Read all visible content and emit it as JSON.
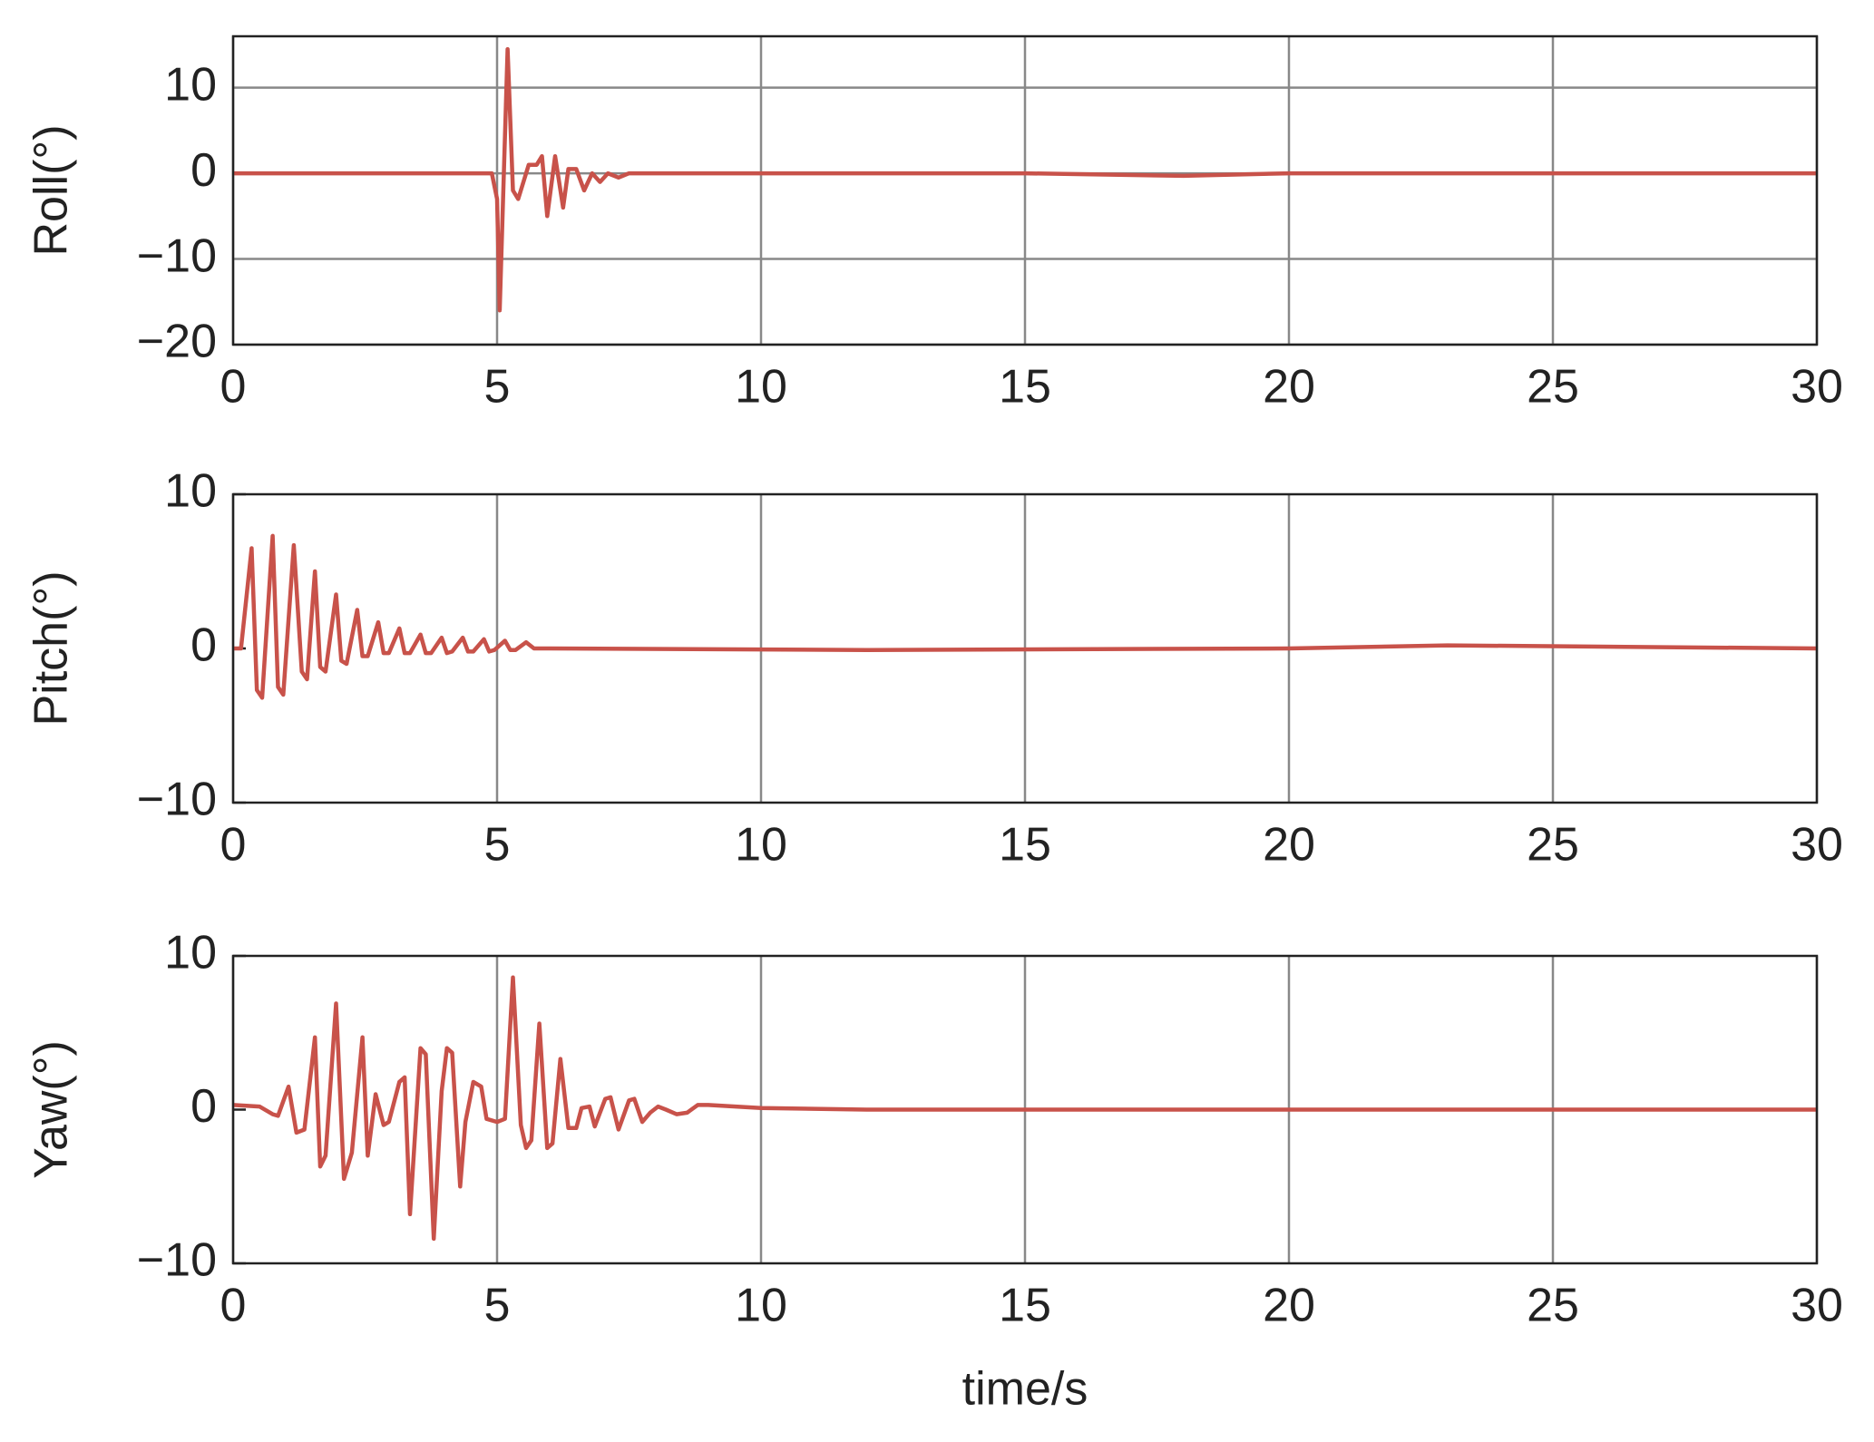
{
  "chart_data": [
    {
      "type": "line",
      "ylabel": "Roll(°)",
      "color": "#c8524a",
      "grid": "both",
      "xlim": [
        0,
        30
      ],
      "xticks": [
        0,
        5,
        10,
        15,
        20,
        25,
        30
      ],
      "ylim": [
        -20,
        16
      ],
      "yticks": [
        {
          "value": -20,
          "label": "−20"
        },
        {
          "value": -10,
          "label": "−10"
        },
        0,
        10
      ],
      "x": [
        0,
        4.9,
        5.0,
        5.05,
        5.2,
        5.3,
        5.4,
        5.6,
        5.75,
        5.85,
        5.95,
        6.1,
        6.25,
        6.35,
        6.5,
        6.65,
        6.8,
        6.95,
        7.1,
        7.3,
        7.5,
        7.8,
        8,
        10,
        15,
        18,
        20,
        25,
        30
      ],
      "values": [
        0,
        0,
        -3,
        -16,
        14.5,
        -2,
        -3,
        1,
        1,
        2,
        -5,
        2,
        -4,
        0.5,
        0.5,
        -2,
        0,
        -1,
        0,
        -0.5,
        0,
        0,
        0,
        0,
        0,
        -0.3,
        0,
        0,
        0
      ]
    },
    {
      "type": "line",
      "ylabel": "Pitch(°)",
      "color": "#c8524a",
      "grid": "x",
      "xlim": [
        0,
        30
      ],
      "xticks": [
        0,
        5,
        10,
        15,
        20,
        25,
        30
      ],
      "ylim": [
        -10,
        10
      ],
      "yticks": [
        {
          "value": -10,
          "label": "−10"
        },
        0,
        10
      ],
      "x": [
        0,
        0.15,
        0.35,
        0.45,
        0.55,
        0.75,
        0.85,
        0.95,
        1.15,
        1.3,
        1.4,
        1.55,
        1.65,
        1.75,
        1.95,
        2.05,
        2.15,
        2.35,
        2.45,
        2.55,
        2.75,
        2.85,
        2.95,
        3.15,
        3.25,
        3.35,
        3.55,
        3.65,
        3.75,
        3.95,
        4.05,
        4.15,
        4.35,
        4.45,
        4.55,
        4.75,
        4.85,
        4.95,
        5.15,
        5.25,
        5.35,
        5.55,
        5.7,
        6,
        12,
        20,
        23,
        30
      ],
      "values": [
        0,
        0,
        6.5,
        -2.7,
        -3.2,
        7.3,
        -2.5,
        -3,
        6.7,
        -1.5,
        -2,
        5,
        -1.2,
        -1.5,
        3.5,
        -0.8,
        -1,
        2.5,
        -0.5,
        -0.5,
        1.7,
        -0.3,
        -0.3,
        1.3,
        -0.3,
        -0.3,
        0.9,
        -0.3,
        -0.3,
        0.7,
        -0.3,
        -0.2,
        0.7,
        -0.2,
        -0.2,
        0.6,
        -0.2,
        -0.1,
        0.5,
        -0.1,
        -0.1,
        0.4,
        0,
        0,
        -0.1,
        0,
        0.2,
        0
      ]
    },
    {
      "type": "line",
      "ylabel": "Yaw(°)",
      "xlabel": "time/s",
      "color": "#c8524a",
      "grid": "x",
      "xlim": [
        0,
        30
      ],
      "xticks": [
        0,
        5,
        10,
        15,
        20,
        25,
        30
      ],
      "ylim": [
        -10,
        10
      ],
      "yticks": [
        {
          "value": -10,
          "label": "−10"
        },
        0,
        10
      ],
      "x": [
        0,
        0.5,
        0.75,
        0.85,
        1.05,
        1.2,
        1.35,
        1.55,
        1.65,
        1.75,
        1.95,
        2.1,
        2.25,
        2.45,
        2.55,
        2.7,
        2.85,
        2.95,
        3.15,
        3.25,
        3.35,
        3.55,
        3.65,
        3.8,
        3.95,
        4.05,
        4.15,
        4.3,
        4.4,
        4.55,
        4.7,
        4.8,
        5,
        5.15,
        5.3,
        5.45,
        5.55,
        5.65,
        5.8,
        5.95,
        6.05,
        6.2,
        6.35,
        6.5,
        6.6,
        6.75,
        6.85,
        7.05,
        7.15,
        7.3,
        7.5,
        7.6,
        7.75,
        7.9,
        8.05,
        8.2,
        8.4,
        8.6,
        8.8,
        9,
        10,
        12,
        17,
        20,
        30
      ],
      "values": [
        0.3,
        0.2,
        -0.3,
        -0.4,
        1.5,
        -1.5,
        -1.3,
        4.7,
        -3.7,
        -3,
        6.9,
        -4.5,
        -2.8,
        4.7,
        -3,
        1,
        -1,
        -0.8,
        1.8,
        2.1,
        -6.8,
        4,
        3.6,
        -8.4,
        1.2,
        4,
        3.7,
        -5,
        -0.8,
        1.8,
        1.5,
        -0.6,
        -0.8,
        -0.6,
        8.6,
        -1,
        -2.5,
        -2,
        5.6,
        -2.5,
        -2.2,
        3.3,
        -1.2,
        -1.2,
        0.1,
        0.2,
        -1.1,
        0.7,
        0.8,
        -1.3,
        0.6,
        0.7,
        -0.8,
        -0.2,
        0.2,
        0,
        -0.3,
        -0.2,
        0.3,
        0.3,
        0.1,
        0,
        0,
        0,
        0
      ]
    }
  ]
}
